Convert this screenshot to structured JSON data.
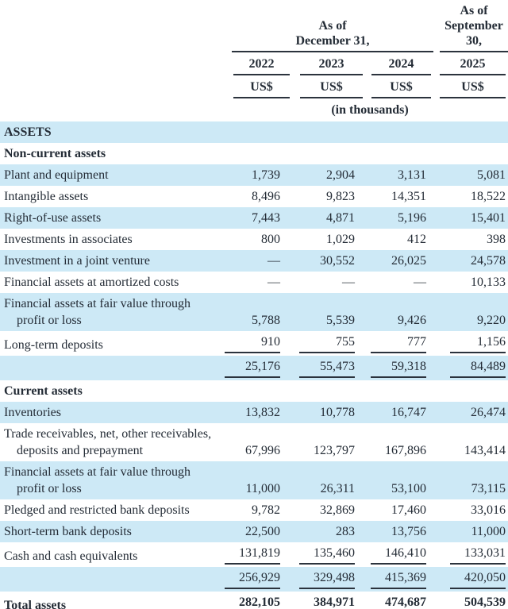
{
  "colors": {
    "row_blue": "#cde9f6",
    "text": "#242c36",
    "rule": "#2b333d"
  },
  "header": {
    "group1_lines": [
      "As of",
      "December 31,"
    ],
    "group2_lines": [
      "As of",
      "September",
      "30,"
    ],
    "years": [
      "2022",
      "2023",
      "2024",
      "2025"
    ],
    "currency": "US$",
    "unit_note": "(in thousands)"
  },
  "rows": [
    {
      "label": "ASSETS",
      "values": [
        "",
        "",
        "",
        ""
      ],
      "bold": true,
      "bg": "blue",
      "rule": "none"
    },
    {
      "label": "Non-current assets",
      "values": [
        "",
        "",
        "",
        ""
      ],
      "bold": true,
      "bg": "white",
      "rule": "none"
    },
    {
      "label": "Plant and equipment",
      "values": [
        "1,739",
        "2,904",
        "3,131",
        "5,081"
      ],
      "bold": false,
      "bg": "blue",
      "rule": "none"
    },
    {
      "label": "Intangible assets",
      "values": [
        "8,496",
        "9,823",
        "14,351",
        "18,522"
      ],
      "bold": false,
      "bg": "white",
      "rule": "none"
    },
    {
      "label": "Right-of-use assets",
      "values": [
        "7,443",
        "4,871",
        "5,196",
        "15,401"
      ],
      "bold": false,
      "bg": "blue",
      "rule": "none"
    },
    {
      "label": "Investments in associates",
      "values": [
        "800",
        "1,029",
        "412",
        "398"
      ],
      "bold": false,
      "bg": "white",
      "rule": "none"
    },
    {
      "label": "Investment in a joint venture",
      "values": [
        "—",
        "30,552",
        "26,025",
        "24,578"
      ],
      "bold": false,
      "bg": "blue",
      "rule": "none"
    },
    {
      "label": "Financial assets at amortized costs",
      "values": [
        "—",
        "—",
        "—",
        "10,133"
      ],
      "bold": false,
      "bg": "white",
      "rule": "none"
    },
    {
      "label": "Financial assets at fair value through profit or loss",
      "values": [
        "5,788",
        "5,539",
        "9,426",
        "9,220"
      ],
      "bold": false,
      "bg": "blue",
      "rule": "none"
    },
    {
      "label": "Long-term deposits",
      "values": [
        "910",
        "755",
        "777",
        "1,156"
      ],
      "bold": false,
      "bg": "white",
      "rule": "single"
    },
    {
      "label": "",
      "values": [
        "25,176",
        "55,473",
        "59,318",
        "84,489"
      ],
      "bold": false,
      "bg": "blue",
      "rule": "single"
    },
    {
      "label": "Current assets",
      "values": [
        "",
        "",
        "",
        ""
      ],
      "bold": true,
      "bg": "white",
      "rule": "none"
    },
    {
      "label": "Inventories",
      "values": [
        "13,832",
        "10,778",
        "16,747",
        "26,474"
      ],
      "bold": false,
      "bg": "blue",
      "rule": "none"
    },
    {
      "label": "Trade receivables, net, other receivables, deposits and prepayment",
      "values": [
        "67,996",
        "123,797",
        "167,896",
        "143,414"
      ],
      "bold": false,
      "bg": "white",
      "rule": "none"
    },
    {
      "label": "Financial assets at fair value through profit or loss",
      "values": [
        "11,000",
        "26,311",
        "53,100",
        "73,115"
      ],
      "bold": false,
      "bg": "blue",
      "rule": "none"
    },
    {
      "label": "Pledged and restricted bank deposits",
      "values": [
        "9,782",
        "32,869",
        "17,460",
        "33,016"
      ],
      "bold": false,
      "bg": "white",
      "rule": "none"
    },
    {
      "label": "Short-term bank deposits",
      "values": [
        "22,500",
        "283",
        "13,756",
        "11,000"
      ],
      "bold": false,
      "bg": "blue",
      "rule": "none"
    },
    {
      "label": "Cash and cash equivalents",
      "values": [
        "131,819",
        "135,460",
        "146,410",
        "133,031"
      ],
      "bold": false,
      "bg": "white",
      "rule": "single"
    },
    {
      "label": "",
      "values": [
        "256,929",
        "329,498",
        "415,369",
        "420,050"
      ],
      "bold": false,
      "bg": "blue",
      "rule": "single"
    },
    {
      "label": "Total assets",
      "values": [
        "282,105",
        "384,971",
        "474,687",
        "504,539"
      ],
      "bold": true,
      "bg": "white",
      "rule": "double"
    },
    {
      "label": "",
      "values": [
        "",
        "",
        "",
        ""
      ],
      "bold": false,
      "bg": "blue",
      "rule": "none",
      "spacer": true
    }
  ]
}
